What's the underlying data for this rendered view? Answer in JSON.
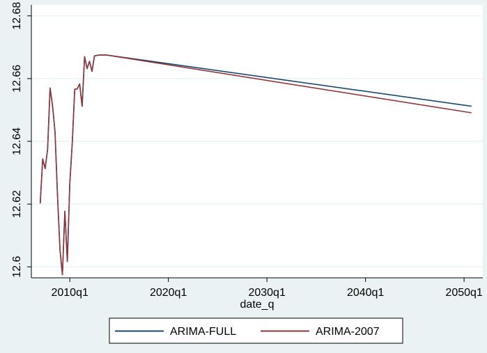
{
  "chart_data": {
    "type": "line",
    "xlabel": "date_q",
    "ylabel": "",
    "x_ticks": [
      "2010q1",
      "2020q1",
      "2030q1",
      "2040q1",
      "2050q1"
    ],
    "x_tick_values": [
      2010.0,
      2020.0,
      2030.0,
      2040.0,
      2050.0
    ],
    "y_ticks": [
      "12.6",
      "12.62",
      "12.64",
      "12.66",
      "12.68"
    ],
    "y_tick_values": [
      12.6,
      12.62,
      12.64,
      12.66,
      12.68
    ],
    "xlim": [
      2006.1,
      2051.9
    ],
    "ylim": [
      12.5965,
      12.6835
    ],
    "grid": "horizontal",
    "legend_position": "bottom",
    "series": [
      {
        "name": "ARIMA-FULL",
        "color": "#1a476f",
        "x": [
          2007.0,
          2007.25,
          2007.5,
          2007.75,
          2008.0,
          2008.25,
          2008.5,
          2008.75,
          2009.0,
          2009.25,
          2009.5,
          2009.75,
          2010.0,
          2010.25,
          2010.5,
          2010.75,
          2011.0,
          2011.25,
          2011.5,
          2011.75,
          2012.0,
          2012.25,
          2012.5,
          2012.75,
          2013.0,
          2013.25,
          2013.5,
          2013.75,
          2050.75
        ],
        "y": [
          12.6202,
          12.6344,
          12.6313,
          12.6375,
          12.657,
          12.6513,
          12.643,
          12.623,
          12.6057,
          12.5975,
          12.6177,
          12.6017,
          12.6265,
          12.6395,
          12.6566,
          12.6567,
          12.6583,
          12.6512,
          12.667,
          12.6632,
          12.6655,
          12.6623,
          12.6672,
          12.6674,
          12.6675,
          12.6675,
          12.6675,
          12.6675,
          12.6512
        ]
      },
      {
        "name": "ARIMA-2007",
        "color": "#90353b",
        "x": [
          2007.0,
          2007.25,
          2007.5,
          2007.75,
          2008.0,
          2008.25,
          2008.5,
          2008.75,
          2009.0,
          2009.25,
          2009.5,
          2009.75,
          2010.0,
          2010.25,
          2010.5,
          2010.75,
          2011.0,
          2011.25,
          2011.5,
          2011.75,
          2012.0,
          2012.25,
          2012.5,
          2012.75,
          2013.0,
          2013.25,
          2013.5,
          2013.75,
          2050.75
        ],
        "y": [
          12.6202,
          12.6344,
          12.6313,
          12.6375,
          12.657,
          12.6513,
          12.643,
          12.623,
          12.6057,
          12.5975,
          12.6177,
          12.6017,
          12.6265,
          12.6395,
          12.6566,
          12.6567,
          12.6583,
          12.6512,
          12.667,
          12.6632,
          12.6655,
          12.6623,
          12.6672,
          12.6674,
          12.6675,
          12.6675,
          12.6675,
          12.6675,
          12.6491
        ]
      }
    ]
  },
  "colors": {
    "outer_background": "#eaf2f3",
    "plot_background": "#ffffff",
    "gridline": "#eaf2f3"
  }
}
